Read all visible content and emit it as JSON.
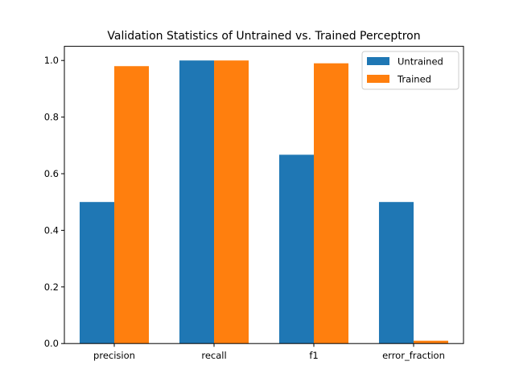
{
  "chart_data": {
    "type": "bar",
    "title": "Validation Statistics of Untrained vs. Trained Perceptron",
    "xlabel": "",
    "ylabel": "",
    "categories": [
      "precision",
      "recall",
      "f1",
      "error_fraction"
    ],
    "series": [
      {
        "name": "Untrained",
        "color": "#1f77b4",
        "values": [
          0.5,
          1.0,
          0.667,
          0.5
        ]
      },
      {
        "name": "Trained",
        "color": "#ff7f0e",
        "values": [
          0.98,
          1.0,
          0.99,
          0.01
        ]
      }
    ],
    "ylim": [
      0,
      1.05
    ],
    "yticks": [
      "0.0",
      "0.2",
      "0.4",
      "0.6",
      "0.8",
      "1.0"
    ],
    "grid": false,
    "legend_position": "top-right"
  }
}
